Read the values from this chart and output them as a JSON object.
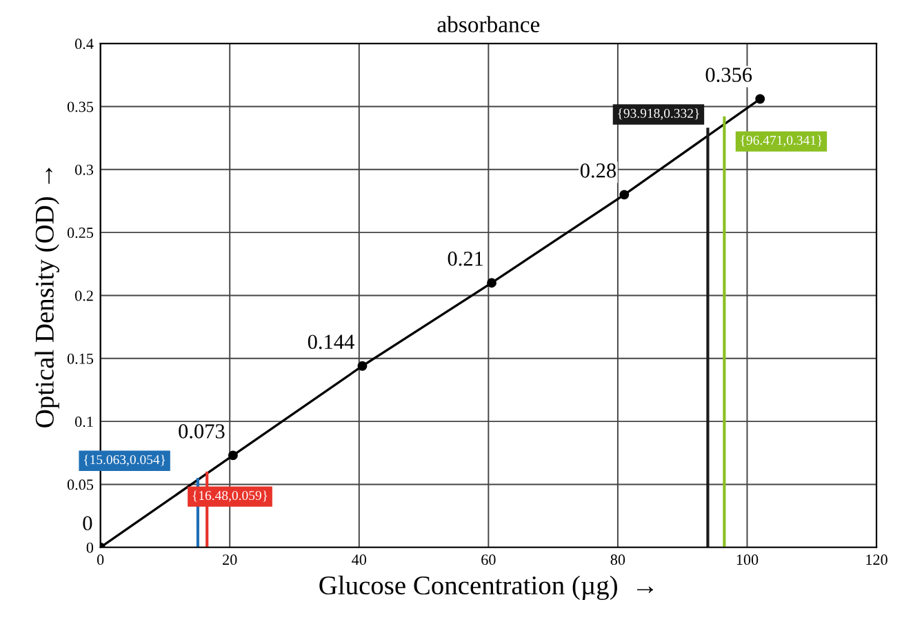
{
  "chart_data": {
    "type": "line",
    "title": "absorbance",
    "xlabel": "Glucose Concentration (µg)  →",
    "ylabel": "Optical Density (OD) →",
    "xlim": [
      0,
      120
    ],
    "xticks": [
      0,
      20,
      40,
      60,
      80,
      100,
      120
    ],
    "ylim": [
      0,
      0.4
    ],
    "yticks": [
      0,
      0.05,
      0.1,
      0.15,
      0.2,
      0.25,
      0.3,
      0.35,
      0.4
    ],
    "grid": true,
    "series": [
      {
        "color": "#000000",
        "marker": "circle",
        "x": [
          0,
          20.5,
          40.5,
          60.5,
          81,
          102
        ],
        "values": [
          0,
          0.073,
          0.144,
          0.21,
          0.28,
          0.356
        ],
        "value_labels": [
          "0",
          "0.073",
          "0.144",
          "0.21",
          "0.28",
          "0.356"
        ]
      },
      {
        "color": "#1f6fb5",
        "marker": "none",
        "x": [
          15.063,
          15.063
        ],
        "values": [
          0,
          0.054
        ]
      },
      {
        "color": "#e8332a",
        "marker": "none",
        "x": [
          16.48,
          16.48
        ],
        "values": [
          0,
          0.059
        ]
      },
      {
        "color": "#1a1a1a",
        "marker": "none",
        "x": [
          93.918,
          93.918
        ],
        "values": [
          0,
          0.332
        ]
      },
      {
        "color": "#8bbf22",
        "marker": "none",
        "x": [
          96.471,
          96.471
        ],
        "values": [
          0,
          0.341
        ]
      }
    ],
    "annotations": [
      {
        "text": "{15.063,0.054}",
        "x": 15.063,
        "y": 0.054
      },
      {
        "text": "{16.48,0.059}",
        "x": 16.48,
        "y": 0.059
      },
      {
        "text": "{93.918,0.332}",
        "x": 93.918,
        "y": 0.332
      },
      {
        "text": "{96.471,0.341}",
        "x": 96.471,
        "y": 0.341
      }
    ]
  }
}
